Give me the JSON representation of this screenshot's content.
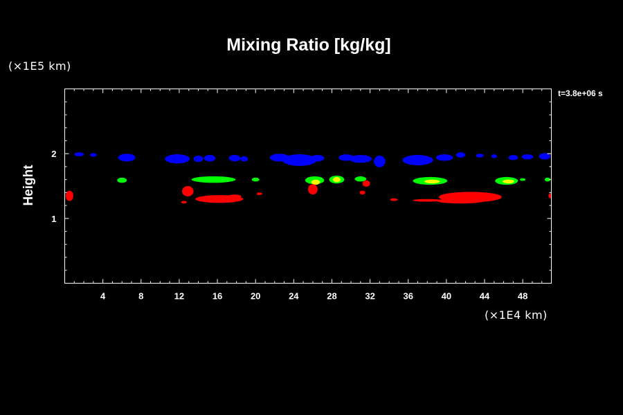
{
  "chart_data": {
    "type": "contour",
    "title": "Mixing Ratio [kg/kg]",
    "ylabel": "Height",
    "x_unit_label": "(×1E4 km)",
    "y_unit_label": "(×1E5 km)",
    "time_label": "t=3.8e+06 s",
    "xlim": [
      0,
      51
    ],
    "ylim": [
      0,
      3
    ],
    "xticks": [
      4,
      8,
      12,
      16,
      20,
      24,
      28,
      32,
      36,
      40,
      44,
      48
    ],
    "yticks": [
      1,
      2
    ],
    "x_minor_step": 1,
    "y_minor_step": 0.2,
    "colors": {
      "background": "#000000",
      "foreground": "#ffffff",
      "blue": "#0000ff",
      "green": "#00ff00",
      "yellow": "#ffff00",
      "red": "#ff0000"
    },
    "layers": [
      {
        "color": "blue",
        "blobs": [
          [
            1.5,
            1.99,
            0.5,
            0.03
          ],
          [
            3.0,
            1.98,
            0.35,
            0.03
          ],
          [
            6.5,
            1.94,
            0.9,
            0.06
          ],
          [
            11.8,
            1.92,
            1.3,
            0.07
          ],
          [
            14.0,
            1.92,
            0.5,
            0.05
          ],
          [
            15.2,
            1.93,
            0.6,
            0.05
          ],
          [
            17.8,
            1.93,
            0.6,
            0.05
          ],
          [
            18.8,
            1.92,
            0.4,
            0.04
          ],
          [
            22.5,
            1.94,
            1.0,
            0.06
          ],
          [
            24.6,
            1.9,
            1.8,
            0.09
          ],
          [
            26.5,
            1.93,
            0.7,
            0.05
          ],
          [
            29.5,
            1.94,
            0.8,
            0.05
          ],
          [
            31.0,
            1.92,
            1.2,
            0.06
          ],
          [
            33.0,
            1.88,
            0.6,
            0.09
          ],
          [
            37.0,
            1.9,
            1.6,
            0.08
          ],
          [
            39.8,
            1.94,
            0.9,
            0.05
          ],
          [
            41.5,
            1.98,
            0.5,
            0.04
          ],
          [
            43.5,
            1.97,
            0.4,
            0.03
          ],
          [
            45.0,
            1.96,
            0.3,
            0.03
          ],
          [
            47.0,
            1.94,
            0.5,
            0.04
          ],
          [
            48.5,
            1.95,
            0.6,
            0.04
          ],
          [
            50.3,
            1.96,
            0.6,
            0.05
          ]
        ]
      },
      {
        "color": "green",
        "blobs": [
          [
            6.0,
            1.59,
            0.5,
            0.04
          ],
          [
            15.6,
            1.6,
            2.3,
            0.05
          ],
          [
            20.0,
            1.6,
            0.4,
            0.03
          ],
          [
            26.2,
            1.59,
            1.0,
            0.06
          ],
          [
            28.5,
            1.6,
            0.8,
            0.06
          ],
          [
            31.0,
            1.61,
            0.6,
            0.04
          ],
          [
            38.3,
            1.58,
            1.8,
            0.06
          ],
          [
            46.3,
            1.58,
            1.2,
            0.06
          ],
          [
            48.0,
            1.6,
            0.3,
            0.02
          ],
          [
            50.6,
            1.6,
            0.3,
            0.03
          ]
        ]
      },
      {
        "color": "yellow",
        "blobs": [
          [
            26.3,
            1.56,
            0.45,
            0.04
          ],
          [
            28.5,
            1.6,
            0.4,
            0.04
          ],
          [
            38.5,
            1.57,
            0.8,
            0.03
          ],
          [
            46.5,
            1.57,
            0.6,
            0.03
          ]
        ]
      },
      {
        "color": "red",
        "blobs": [
          [
            0.5,
            1.35,
            0.4,
            0.08
          ],
          [
            12.9,
            1.42,
            0.6,
            0.08
          ],
          [
            16.2,
            1.3,
            2.5,
            0.06
          ],
          [
            17.8,
            1.34,
            0.7,
            0.03
          ],
          [
            12.5,
            1.25,
            0.3,
            0.02
          ],
          [
            20.4,
            1.38,
            0.3,
            0.02
          ],
          [
            26.0,
            1.45,
            0.5,
            0.08
          ],
          [
            31.6,
            1.54,
            0.4,
            0.05
          ],
          [
            31.2,
            1.4,
            0.3,
            0.03
          ],
          [
            34.5,
            1.29,
            0.4,
            0.02
          ],
          [
            38.0,
            1.28,
            1.5,
            0.02
          ],
          [
            42.5,
            1.33,
            3.3,
            0.08
          ],
          [
            41.5,
            1.27,
            2.5,
            0.04
          ],
          [
            50.9,
            1.35,
            0.2,
            0.04
          ]
        ]
      }
    ]
  }
}
